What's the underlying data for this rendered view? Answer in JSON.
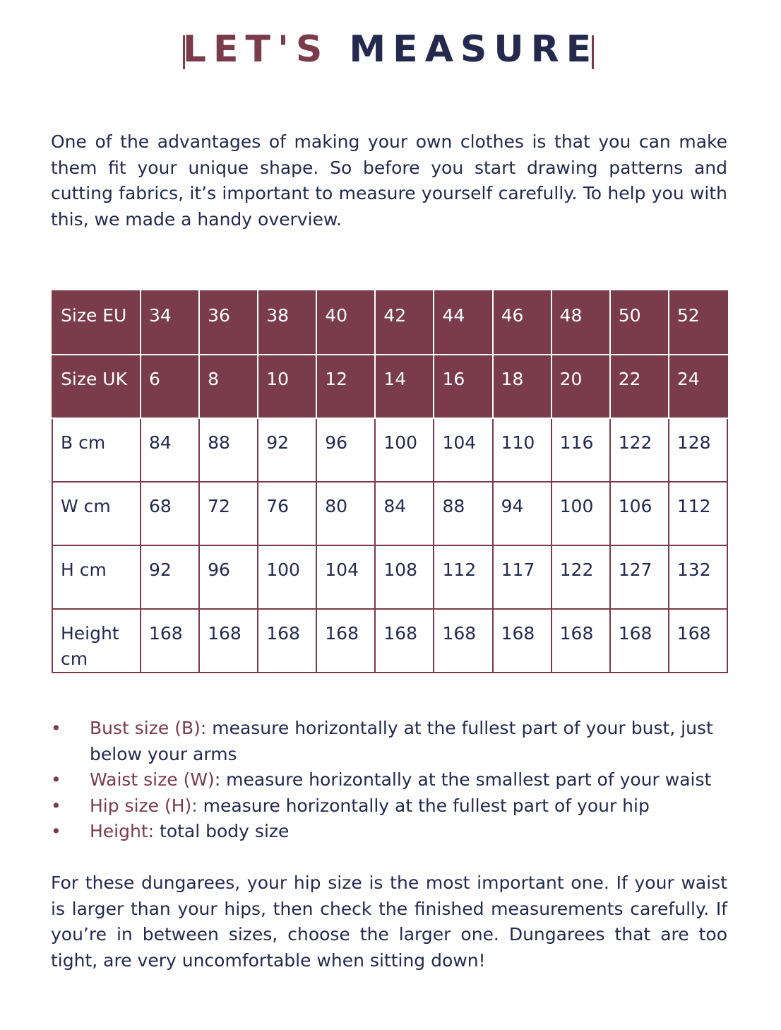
{
  "title": {
    "part1": "LET'S",
    "part2": "MEASURE"
  },
  "intro": "One of the advantages of making your own clothes is that you can make them fit your unique shape. So before you start drawing patterns and cutting fabrics, it’s important to measure yourself carefully. To help you with this, we made a handy overview.",
  "colors": {
    "accent": "#7a3b4b",
    "text": "#232a4e"
  },
  "table": {
    "rows": [
      {
        "label": "Size EU",
        "values": [
          "34",
          "36",
          "38",
          "40",
          "42",
          "44",
          "46",
          "48",
          "50",
          "52"
        ]
      },
      {
        "label": "Size UK",
        "values": [
          "6",
          "8",
          "10",
          "12",
          "14",
          "16",
          "18",
          "20",
          "22",
          "24"
        ]
      },
      {
        "label": "B cm",
        "values": [
          "84",
          "88",
          "92",
          "96",
          "100",
          "104",
          "110",
          "116",
          "122",
          "128"
        ]
      },
      {
        "label": "W cm",
        "values": [
          "68",
          "72",
          "76",
          "80",
          "84",
          "88",
          "94",
          "100",
          "106",
          "112"
        ]
      },
      {
        "label": "H cm",
        "values": [
          "92",
          "96",
          "100",
          "104",
          "108",
          "112",
          "117",
          "122",
          "127",
          "132"
        ]
      },
      {
        "label": "Height cm",
        "values": [
          "168",
          "168",
          "168",
          "168",
          "168",
          "168",
          "168",
          "168",
          "168",
          "168"
        ]
      }
    ]
  },
  "bullets": [
    {
      "label": "Bust size (B):",
      "text": " measure horizontally at the fullest part of your bust, just below your arms"
    },
    {
      "label": "Waist size (W)",
      "text": ": measure horizontally at the smallest part of your waist"
    },
    {
      "label": "Hip size (H):",
      "text": " measure horizontally at the fullest part of your hip"
    },
    {
      "label": "Height:",
      "text": " total body size"
    }
  ],
  "closing": "For these dungarees, your hip size is the most important one. If your waist is larger than your hips, then check the finished measurements carefully. If you’re in between sizes, choose the larger one. Dungarees that are too tight, are very uncomfortable when sitting down!"
}
